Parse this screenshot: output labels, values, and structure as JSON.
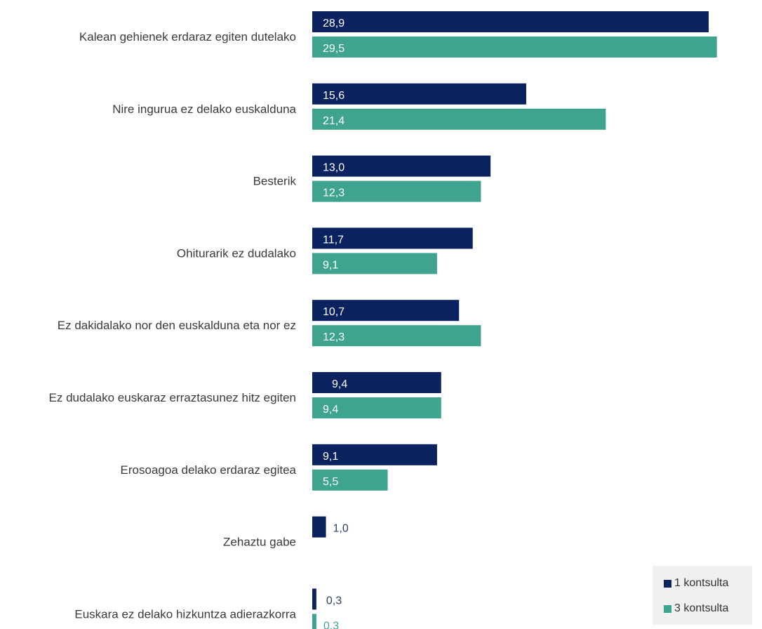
{
  "chart_data": {
    "type": "bar",
    "orientation": "horizontal",
    "categories": [
      "Kalean gehienek erdaraz egiten dutelako",
      "Nire ingurua ez delako euskalduna",
      "Besterik",
      "Ohiturarik ez dudalako",
      "Ez dakidalako nor den euskalduna eta nor ez",
      "Ez dudalako euskaraz erraztasunez hitz egiten",
      "Erosoagoa delako erdaraz egitea",
      "Zehaztu gabe",
      "Euskara ez delako hizkuntza adierazkorra"
    ],
    "series": [
      {
        "name": "1 kontsulta",
        "color": "#0b2260",
        "values": [
          28.9,
          15.6,
          13.0,
          11.7,
          10.7,
          9.4,
          9.1,
          1.0,
          0.3
        ],
        "labels": [
          "28,9",
          "15,6",
          "13,0",
          "11,7",
          "10,7",
          "9,4",
          "9,1",
          "1,0",
          "0,3"
        ]
      },
      {
        "name": "3 kontsulta",
        "color": "#3ea38f",
        "values": [
          29.5,
          21.4,
          12.3,
          9.1,
          12.3,
          9.4,
          5.5,
          null,
          0.3
        ],
        "labels": [
          "29,5",
          "21,4",
          "12,3",
          "9,1",
          "12,3",
          "9,4",
          "5,5",
          "",
          "0,3"
        ]
      }
    ],
    "xlim": [
      0,
      30
    ],
    "grid": false,
    "legend_position": "bottom-right",
    "title": "",
    "xlabel": "",
    "ylabel": ""
  }
}
